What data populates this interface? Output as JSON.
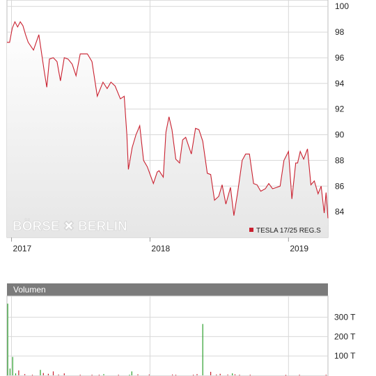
{
  "watermark": "BÖRSE ✖ BERLIN",
  "colors": {
    "price_line": "#c9202f",
    "area_fill_top": "#ffffff",
    "area_fill_bottom": "#e6e6e6",
    "volume_bar": "#2ba02b",
    "volume_bar_down": "#c9202f",
    "grid": "#d8d8d8",
    "panel_header": "#7b7b7b"
  },
  "chart_data": [
    {
      "type": "line",
      "name": "price",
      "legend": "TESLA 17/25 REG.S",
      "legend_position": "bottom-right",
      "x_tick_labels": [
        "2017",
        "2018",
        "2019"
      ],
      "y_ticks": [
        84,
        86,
        88,
        90,
        92,
        94,
        96,
        98,
        100
      ],
      "ylim": [
        82,
        100.5
      ],
      "xlim": [
        "2016-12-20",
        "2019-04-15"
      ],
      "grid": true,
      "series": [
        {
          "x": [
            "2016-12-20",
            "2016-12-27",
            "2017-01-03",
            "2017-01-10",
            "2017-01-17",
            "2017-01-24",
            "2017-01-31",
            "2017-02-07",
            "2017-02-14",
            "2017-02-28",
            "2017-03-14",
            "2017-03-28",
            "2017-04-04",
            "2017-04-11",
            "2017-04-21",
            "2017-05-01",
            "2017-05-10",
            "2017-05-20",
            "2017-05-30",
            "2017-06-10",
            "2017-06-20",
            "2017-07-01",
            "2017-07-10",
            "2017-07-20",
            "2017-08-01",
            "2017-08-15",
            "2017-08-30",
            "2017-09-10",
            "2017-09-20",
            "2017-10-01",
            "2017-10-15",
            "2017-10-25",
            "2017-11-01",
            "2017-11-05",
            "2017-11-15",
            "2017-11-25",
            "2017-12-05",
            "2017-12-15",
            "2017-12-25",
            "2018-01-10",
            "2018-01-20",
            "2018-01-25",
            "2018-02-05",
            "2018-02-12",
            "2018-02-20",
            "2018-02-28",
            "2018-03-10",
            "2018-03-20",
            "2018-03-28",
            "2018-04-05",
            "2018-04-20",
            "2018-05-01",
            "2018-05-10",
            "2018-05-20",
            "2018-06-01",
            "2018-06-10",
            "2018-06-20",
            "2018-07-01",
            "2018-07-10",
            "2018-07-20",
            "2018-08-01",
            "2018-08-10",
            "2018-08-20",
            "2018-09-01",
            "2018-09-10",
            "2018-09-20",
            "2018-10-01",
            "2018-10-10",
            "2018-10-20",
            "2018-11-01",
            "2018-11-10",
            "2018-11-20",
            "2018-12-01",
            "2018-12-10",
            "2018-12-20",
            "2019-01-01",
            "2019-01-10",
            "2019-01-20",
            "2019-01-25",
            "2019-02-01",
            "2019-02-10",
            "2019-02-20",
            "2019-03-01",
            "2019-03-10",
            "2019-03-20",
            "2019-03-28",
            "2019-04-05",
            "2019-04-10",
            "2019-04-15"
          ],
          "y": [
            97.2,
            97.2,
            98.3,
            98.8,
            98.4,
            98.8,
            98.5,
            97.8,
            97.2,
            96.6,
            97.8,
            95.0,
            93.7,
            95.9,
            96.0,
            95.7,
            94.2,
            96.0,
            95.9,
            95.5,
            94.6,
            96.3,
            96.3,
            96.3,
            95.7,
            93.0,
            94.1,
            93.6,
            94.1,
            93.8,
            92.8,
            93.0,
            90.0,
            87.3,
            89.0,
            90.0,
            90.7,
            88.0,
            87.5,
            86.2,
            87.1,
            87.2,
            86.7,
            90.2,
            91.4,
            90.4,
            88.1,
            87.8,
            89.6,
            89.8,
            88.5,
            90.5,
            90.4,
            89.5,
            87.0,
            86.9,
            84.9,
            85.2,
            86.1,
            84.6,
            85.9,
            83.7,
            85.5,
            88.0,
            88.5,
            88.5,
            86.2,
            86.1,
            85.6,
            85.8,
            86.2,
            85.8,
            85.9,
            86.0,
            88.0,
            88.7,
            85.0,
            87.8,
            87.8,
            88.7,
            88.1,
            88.9,
            86.1,
            86.4,
            85.4,
            86.0,
            83.9,
            85.5,
            83.5
          ]
        }
      ]
    },
    {
      "type": "bar",
      "name": "volume",
      "title": "Volumen",
      "y_ticks": [
        "100 T",
        "200 T",
        "300 T"
      ],
      "y_tick_values": [
        100,
        200,
        300
      ],
      "ylim": [
        0,
        410
      ],
      "grid": true,
      "x": [
        "2016-12-22",
        "2016-12-28",
        "2017-01-04",
        "2017-01-12",
        "2017-01-20",
        "2017-02-05",
        "2017-02-25",
        "2017-03-18",
        "2017-03-26",
        "2017-04-08",
        "2017-04-21",
        "2017-05-05",
        "2017-05-20",
        "2017-07-01",
        "2017-08-01",
        "2017-08-20",
        "2017-09-01",
        "2017-10-10",
        "2017-11-08",
        "2017-11-14",
        "2017-11-30",
        "2017-12-30",
        "2018-03-01",
        "2018-03-10",
        "2018-04-25",
        "2018-05-05",
        "2018-05-20",
        "2018-06-10",
        "2018-06-25",
        "2018-07-05",
        "2018-07-25",
        "2018-08-06",
        "2018-08-13",
        "2018-08-25",
        "2018-09-22",
        "2018-12-25",
        "2019-01-30",
        "2019-04-10"
      ],
      "values": [
        370,
        35,
        95,
        10,
        25,
        6,
        3,
        28,
        12,
        8,
        20,
        4,
        10,
        3,
        3,
        3,
        6,
        3,
        3,
        20,
        5,
        4,
        4,
        3,
        3,
        6,
        265,
        18,
        4,
        8,
        4,
        10,
        5,
        3,
        3,
        2,
        3,
        3
      ],
      "bar_color": [
        "up",
        "up",
        "up",
        "up",
        "down",
        "down",
        "down",
        "up",
        "down",
        "down",
        "down",
        "down",
        "down",
        "down",
        "down",
        "down",
        "up",
        "down",
        "up",
        "up",
        "down",
        "down",
        "down",
        "down",
        "down",
        "down",
        "up",
        "down",
        "down",
        "down",
        "down",
        "up",
        "down",
        "down",
        "down",
        "down",
        "down",
        "down"
      ]
    }
  ]
}
